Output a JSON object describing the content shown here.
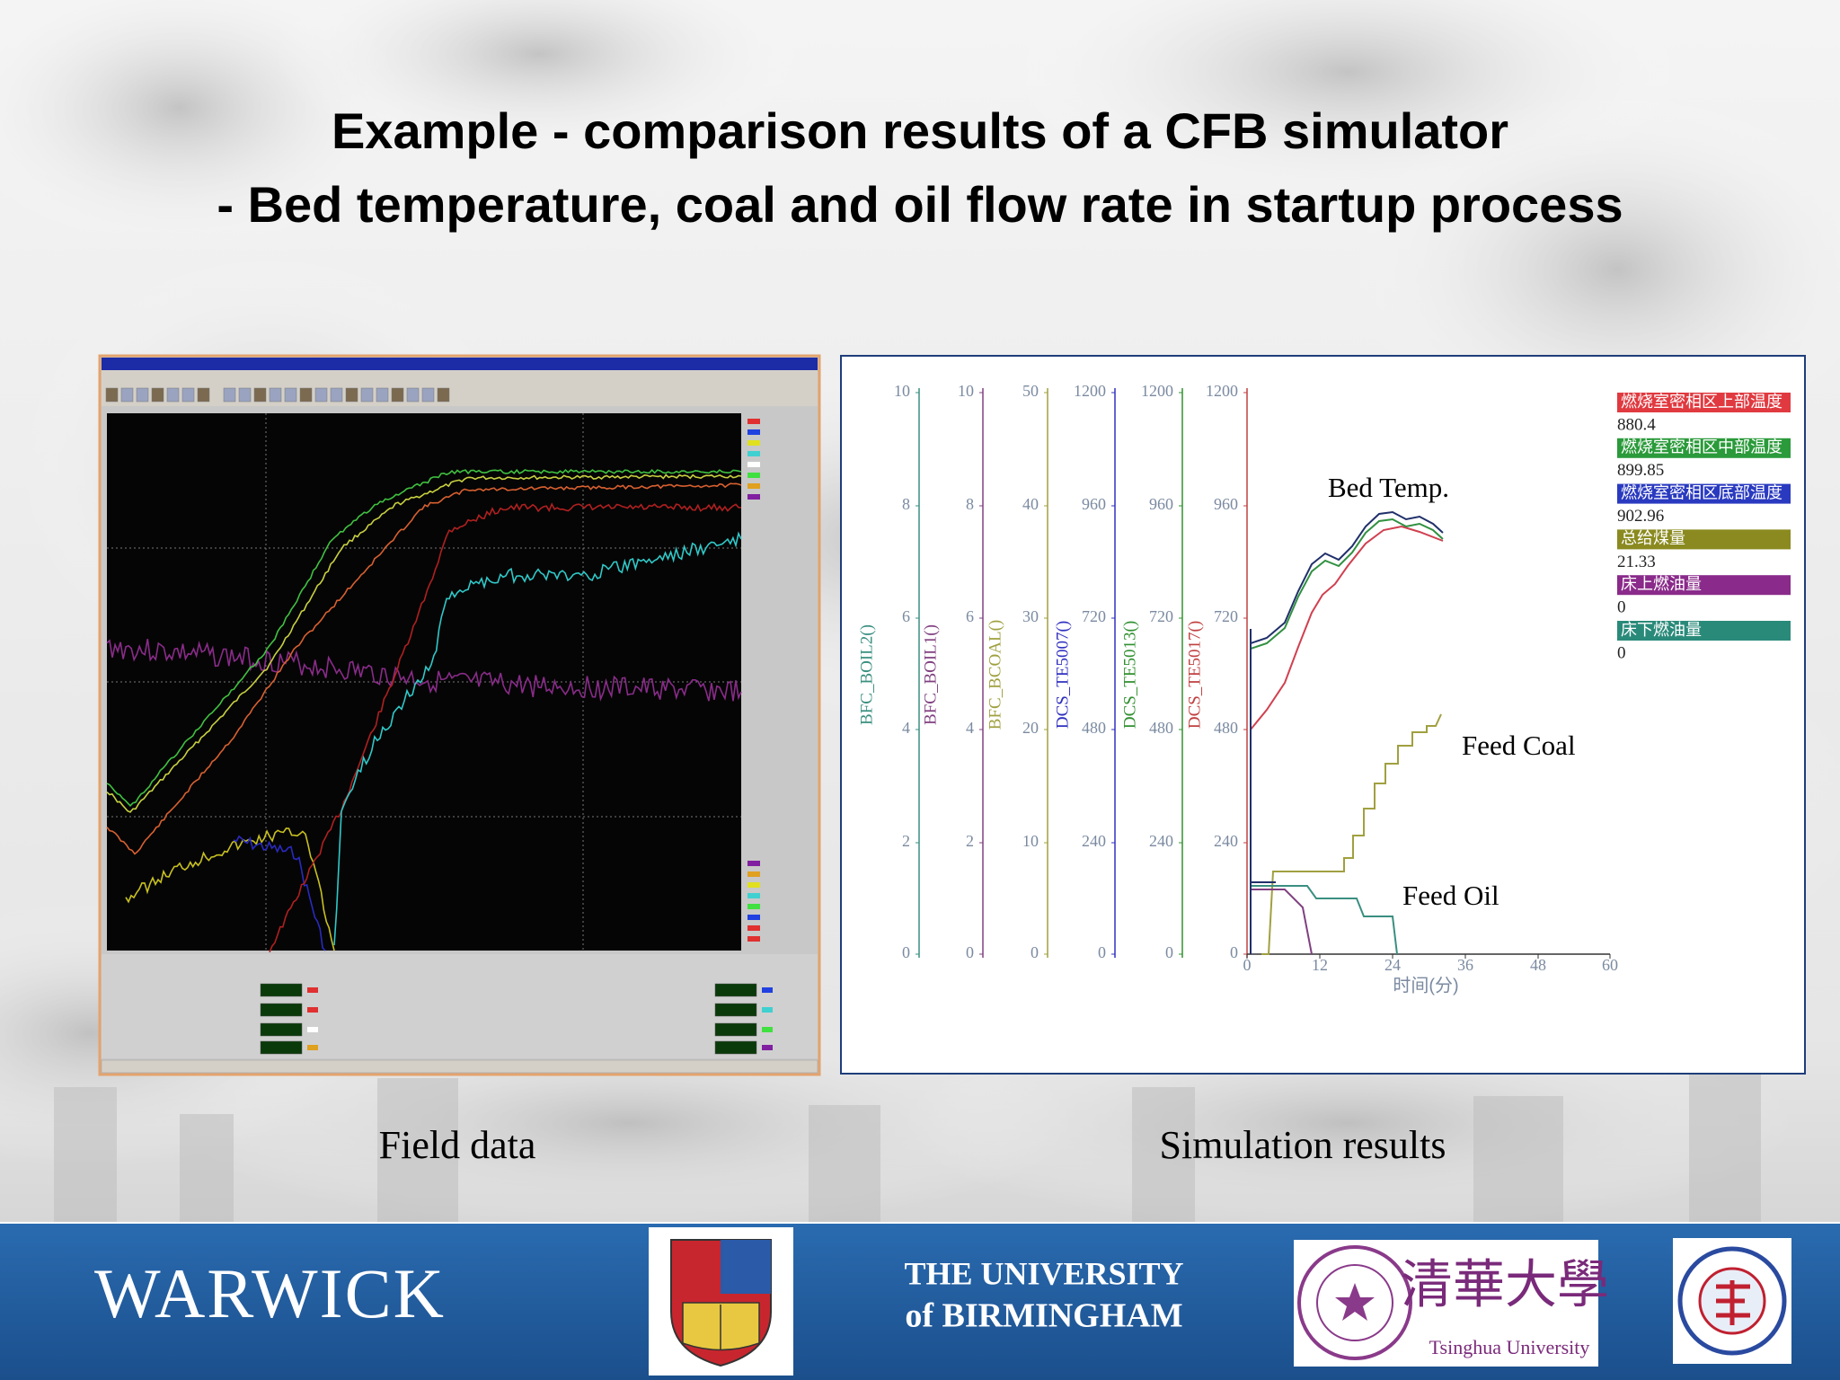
{
  "header": {
    "title": [
      "Example - comparison results of a CFB simulator",
      "- Bed temperature, coal and oil flow rate in startup process"
    ]
  },
  "field_data": {
    "caption": "Field data"
  },
  "simulation": {
    "caption": "Simulation results",
    "axes": [
      {
        "label": "BFC_BOIL2()",
        "ticks": [
          "10",
          "8",
          "6",
          "4",
          "2",
          "0"
        ]
      },
      {
        "label": "BFC_BOIL1()",
        "ticks": [
          "10",
          "8",
          "6",
          "4",
          "2",
          "0"
        ]
      },
      {
        "label": "BFC_BCOAL()",
        "ticks": [
          "50",
          "40",
          "30",
          "20",
          "10",
          "0"
        ]
      },
      {
        "label": "DCS_TE5007()",
        "ticks": [
          "1200",
          "960",
          "720",
          "480",
          "240",
          "0"
        ]
      },
      {
        "label": "DCS_TE5013()",
        "ticks": [
          "1200",
          "960",
          "720",
          "480",
          "240",
          "0"
        ]
      },
      {
        "label": "DCS_TE5017()",
        "ticks": [
          "1200",
          "960",
          "720",
          "480",
          "240",
          "0"
        ]
      }
    ],
    "x_ticks": [
      "0",
      "12",
      "24",
      "36",
      "48",
      "60"
    ],
    "x_label": "时间(分)",
    "legend": [
      {
        "name": "燃烧室密相区上部温度",
        "value": "880.4"
      },
      {
        "name": "燃烧室密相区中部温度",
        "value": "899.85"
      },
      {
        "name": "燃烧室密相区底部温度",
        "value": "902.96"
      },
      {
        "name": "总给煤量",
        "value": "21.33"
      },
      {
        "name": "床上燃油量",
        "value": "0"
      },
      {
        "name": "床下燃油量",
        "value": "0"
      }
    ],
    "annotations": [
      "Bed Temp.",
      "Feed Coal",
      "Feed Oil"
    ]
  },
  "footer": {
    "warwick": "WARWICK",
    "birmingham": [
      "THE UNIVERSITY",
      "of BIRMINGHAM"
    ],
    "tsinghua": [
      "清華大學",
      "Tsinghua University"
    ]
  }
}
